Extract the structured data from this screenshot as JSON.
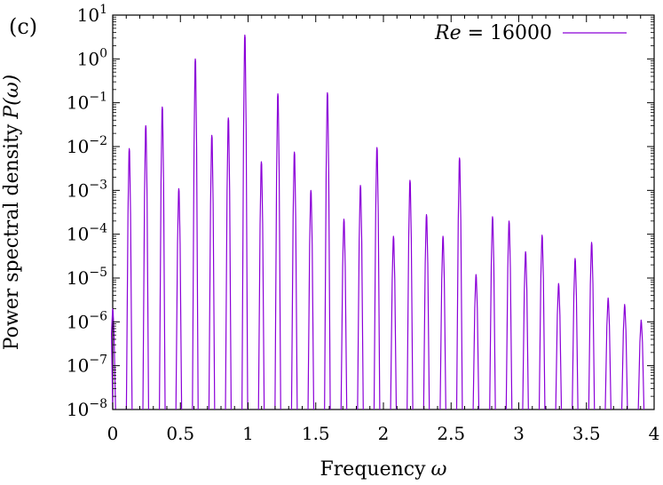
{
  "panel_label": "(c)",
  "chart_data": {
    "type": "line",
    "xlabel": "Frequency",
    "xlabel_symbol": "ω",
    "ylabel": "Power spectral density",
    "ylabel_symbol": "P(ω)",
    "xlim": [
      0,
      4
    ],
    "ylim": [
      1e-08,
      10
    ],
    "y_scale": "log",
    "grid": false,
    "legend_position": "top-right",
    "x_ticks": [
      {
        "value": 0,
        "label": "0"
      },
      {
        "value": 0.5,
        "label": "0.5"
      },
      {
        "value": 1,
        "label": "1"
      },
      {
        "value": 1.5,
        "label": "1.5"
      },
      {
        "value": 2,
        "label": "2"
      },
      {
        "value": 2.5,
        "label": "2.5"
      },
      {
        "value": 3,
        "label": "3"
      },
      {
        "value": 3.5,
        "label": "3.5"
      },
      {
        "value": 4,
        "label": "4"
      }
    ],
    "y_ticks": [
      {
        "value": 1e-08,
        "base": "10",
        "exp": "−8"
      },
      {
        "value": 1e-07,
        "base": "10",
        "exp": "−7"
      },
      {
        "value": 1e-06,
        "base": "10",
        "exp": "−6"
      },
      {
        "value": 1e-05,
        "base": "10",
        "exp": "−5"
      },
      {
        "value": 0.0001,
        "base": "10",
        "exp": "−4"
      },
      {
        "value": 0.001,
        "base": "10",
        "exp": "−3"
      },
      {
        "value": 0.01,
        "base": "10",
        "exp": "−2"
      },
      {
        "value": 0.1,
        "base": "10",
        "exp": "−1"
      },
      {
        "value": 1,
        "base": "10",
        "exp": "0"
      },
      {
        "value": 10,
        "base": "10",
        "exp": "1"
      }
    ],
    "series": [
      {
        "name": "Re = 16000",
        "name_parts": {
          "var": "Re",
          "rest": " = 16000"
        },
        "color": "#8b00d8",
        "peaks": [
          {
            "x": 0.0,
            "y": 2e-06
          },
          {
            "x": 0.122,
            "y": 0.009
          },
          {
            "x": 0.244,
            "y": 0.03
          },
          {
            "x": 0.366,
            "y": 0.08
          },
          {
            "x": 0.488,
            "y": 0.0011
          },
          {
            "x": 0.61,
            "y": 1.0
          },
          {
            "x": 0.732,
            "y": 0.018
          },
          {
            "x": 0.854,
            "y": 0.045
          },
          {
            "x": 0.976,
            "y": 3.5
          },
          {
            "x": 1.098,
            "y": 0.0045
          },
          {
            "x": 1.22,
            "y": 0.16
          },
          {
            "x": 1.342,
            "y": 0.0075
          },
          {
            "x": 1.464,
            "y": 0.001
          },
          {
            "x": 1.586,
            "y": 0.17
          },
          {
            "x": 1.708,
            "y": 0.00022
          },
          {
            "x": 1.83,
            "y": 0.0013
          },
          {
            "x": 1.952,
            "y": 0.0095
          },
          {
            "x": 2.074,
            "y": 9e-05
          },
          {
            "x": 2.196,
            "y": 0.0017
          },
          {
            "x": 2.318,
            "y": 0.00028
          },
          {
            "x": 2.44,
            "y": 9e-05
          },
          {
            "x": 2.562,
            "y": 0.0055
          },
          {
            "x": 2.684,
            "y": 1.2e-05
          },
          {
            "x": 2.806,
            "y": 0.00025
          },
          {
            "x": 2.928,
            "y": 0.0002
          },
          {
            "x": 3.05,
            "y": 4e-05
          },
          {
            "x": 3.172,
            "y": 9.5e-05
          },
          {
            "x": 3.294,
            "y": 7.5e-06
          },
          {
            "x": 3.416,
            "y": 2.8e-05
          },
          {
            "x": 3.538,
            "y": 6.5e-05
          },
          {
            "x": 3.66,
            "y": 3.5e-06
          },
          {
            "x": 3.782,
            "y": 2.5e-06
          },
          {
            "x": 3.904,
            "y": 1.1e-06
          }
        ]
      }
    ]
  }
}
